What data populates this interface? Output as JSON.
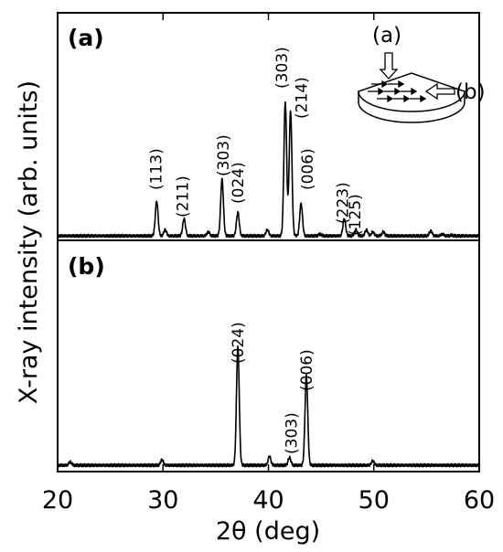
{
  "chart_data": {
    "type": "line",
    "xlabel": "2θ (deg)",
    "ylabel": "X-ray intensity (arb. units)",
    "xlim": [
      20,
      60
    ],
    "xticks": [
      20,
      30,
      40,
      50,
      60
    ],
    "grid": false,
    "panels": [
      {
        "label": "(a)",
        "ylim": [
          0,
          1
        ],
        "baseline": 0.012,
        "peaks": [
          {
            "x": 24.3,
            "y": 0.012
          },
          {
            "x": 29.4,
            "y": 0.17
          },
          {
            "x": 30.2,
            "y": 0.04
          },
          {
            "x": 32.0,
            "y": 0.09
          },
          {
            "x": 34.3,
            "y": 0.03
          },
          {
            "x": 35.6,
            "y": 0.27
          },
          {
            "x": 37.1,
            "y": 0.12
          },
          {
            "x": 39.9,
            "y": 0.04
          },
          {
            "x": 41.6,
            "y": 0.62
          },
          {
            "x": 42.1,
            "y": 0.58
          },
          {
            "x": 43.1,
            "y": 0.16
          },
          {
            "x": 44.9,
            "y": 0.02
          },
          {
            "x": 47.2,
            "y": 0.09
          },
          {
            "x": 48.3,
            "y": 0.04
          },
          {
            "x": 49.3,
            "y": 0.04
          },
          {
            "x": 49.9,
            "y": 0.03
          },
          {
            "x": 50.9,
            "y": 0.03
          },
          {
            "x": 55.4,
            "y": 0.035
          },
          {
            "x": 56.5,
            "y": 0.02
          },
          {
            "x": 57.4,
            "y": 0.015
          }
        ],
        "annotations": [
          {
            "text": "(113)",
            "x": 29.4
          },
          {
            "text": "(211)",
            "x": 32.0
          },
          {
            "text": "(303)",
            "x": 35.6
          },
          {
            "text": "(024)",
            "x": 37.1
          },
          {
            "text": "(303)",
            "x": 41.6
          },
          {
            "text": "(214)",
            "x": 42.1
          },
          {
            "text": "(006)",
            "x": 43.1
          },
          {
            "text": "(223)",
            "x": 47.2
          },
          {
            "text": "(125)",
            "x": 48.3
          }
        ]
      },
      {
        "label": "(b)",
        "ylim": [
          0,
          1
        ],
        "baseline": 0.02,
        "peaks": [
          {
            "x": 21.2,
            "y": 0.035
          },
          {
            "x": 29.9,
            "y": 0.045
          },
          {
            "x": 37.1,
            "y": 0.55
          },
          {
            "x": 40.1,
            "y": 0.06
          },
          {
            "x": 42.0,
            "y": 0.055
          },
          {
            "x": 43.6,
            "y": 0.42
          },
          {
            "x": 49.9,
            "y": 0.04
          }
        ],
        "annotations": [
          {
            "text": "(024)",
            "x": 37.1
          },
          {
            "text": "(303)",
            "x": 42.0
          },
          {
            "text": "(006)",
            "x": 43.6
          }
        ]
      }
    ],
    "inset": {
      "labels": [
        "(a)",
        "(b)"
      ]
    }
  }
}
